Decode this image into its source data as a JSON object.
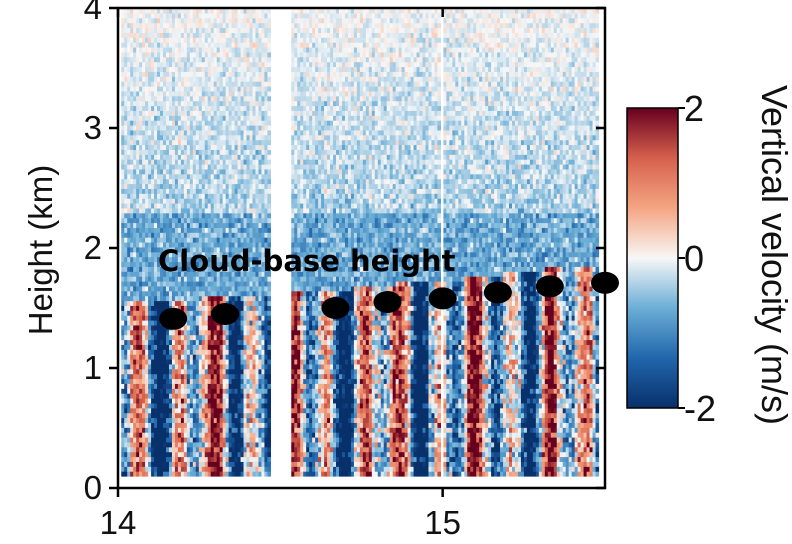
{
  "chart_data": {
    "type": "heatmap",
    "xlabel": "",
    "ylabel": "Height (km)",
    "xlim": [
      14.0,
      15.5
    ],
    "ylim": [
      0,
      4
    ],
    "xticks": [
      14,
      15
    ],
    "xtick_labels": [
      "14",
      "15"
    ],
    "yticks": [
      0,
      1,
      2,
      3,
      4
    ],
    "ytick_labels": [
      "0",
      "1",
      "2",
      "3",
      "4"
    ],
    "data_gaps_x": [
      [
        14.47,
        14.53
      ],
      [
        14.997,
        15.003
      ]
    ],
    "colorbar": {
      "label": "Vertical velocity (m/s)",
      "range": [
        -2,
        2
      ],
      "ticks": [
        -2,
        0,
        2
      ],
      "tick_labels": [
        "-2",
        "0",
        "2"
      ],
      "colormap": [
        "#08306b",
        "#2166ac",
        "#6baed6",
        "#f7f7f7",
        "#f4a582",
        "#d6604d",
        "#67001f"
      ]
    },
    "annotation": "Cloud-base height",
    "cloud_base_series": {
      "name": "Cloud-base height",
      "marker": "black ellipse",
      "points": [
        {
          "x": 14.17,
          "y": 1.41
        },
        {
          "x": 14.33,
          "y": 1.45
        },
        {
          "x": 14.67,
          "y": 1.5
        },
        {
          "x": 14.83,
          "y": 1.55
        },
        {
          "x": 15.0,
          "y": 1.58
        },
        {
          "x": 15.17,
          "y": 1.63
        },
        {
          "x": 15.33,
          "y": 1.68
        },
        {
          "x": 15.5,
          "y": 1.71
        }
      ]
    }
  }
}
